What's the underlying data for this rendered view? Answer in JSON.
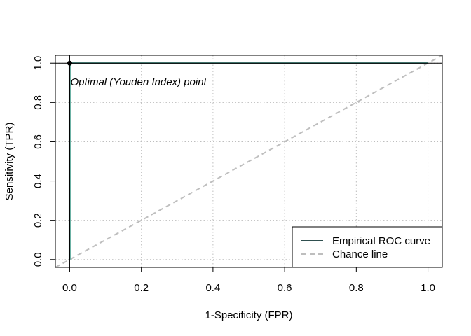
{
  "chart_data": {
    "type": "line",
    "title": "",
    "xlabel": "1-Specificity (FPR)",
    "ylabel": "Sensitivity (TPR)",
    "xlim": [
      -0.04,
      1.04
    ],
    "ylim": [
      -0.04,
      1.04
    ],
    "x_ticks": [
      0.0,
      0.2,
      0.4,
      0.6,
      0.8,
      1.0
    ],
    "y_ticks": [
      0.0,
      0.2,
      0.4,
      0.6,
      0.8,
      1.0
    ],
    "x_tick_labels": [
      "0.0",
      "0.2",
      "0.4",
      "0.6",
      "0.8",
      "1.0"
    ],
    "y_tick_labels": [
      "0.0",
      "0.2",
      "0.4",
      "0.6",
      "0.8",
      "1.0"
    ],
    "grid": true,
    "legend_position": "bottom-right",
    "series": [
      {
        "name": "Empirical ROC curve",
        "style": "solid",
        "color": "#2f4f4f",
        "x": [
          0.0,
          0.0,
          1.0
        ],
        "y": [
          0.0,
          1.0,
          1.0
        ]
      },
      {
        "name": "Chance line",
        "style": "dashed",
        "color": "#bebebe",
        "x": [
          -0.04,
          1.04
        ],
        "y": [
          -0.04,
          1.04
        ]
      }
    ],
    "optimal_point": {
      "x": 0.0,
      "y": 1.0,
      "label": "Optimal (Youden Index) point",
      "color": "#000000"
    },
    "colors": {
      "grid": "#bebebe",
      "axis": "#000000",
      "roc_fill": "#66b2a4"
    }
  }
}
